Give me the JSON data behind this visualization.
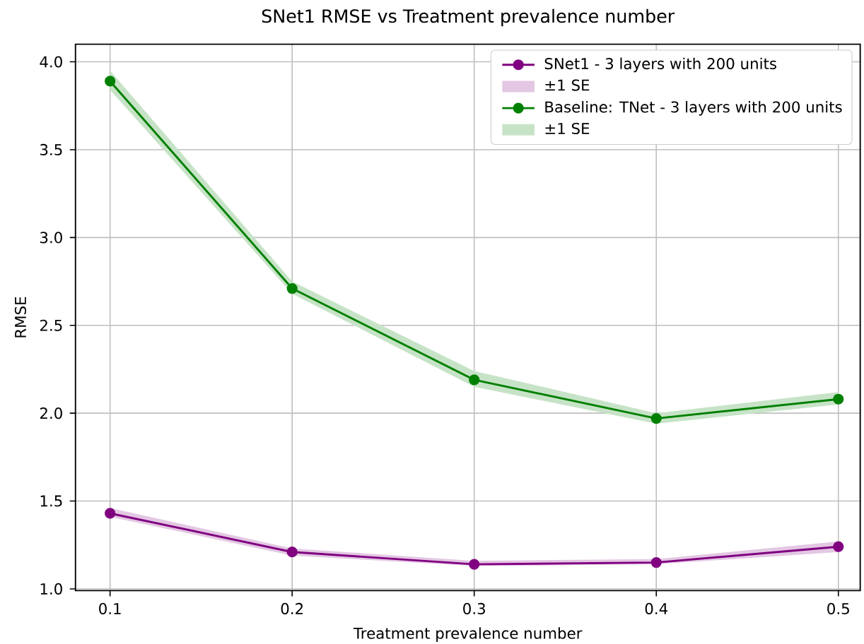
{
  "chart_data": {
    "type": "line",
    "title": "SNet1 RMSE vs Treatment prevalence number",
    "xlabel": "Treatment prevalence number",
    "ylabel": "RMSE",
    "x": [
      0.1,
      0.2,
      0.3,
      0.4,
      0.5
    ],
    "series": [
      {
        "name": "SNet1 - 3 layers with 200 units",
        "color": "#800080",
        "values": [
          1.43,
          1.21,
          1.14,
          1.15,
          1.24
        ],
        "lower": [
          1.41,
          1.19,
          1.13,
          1.14,
          1.21
        ],
        "upper": [
          1.46,
          1.23,
          1.16,
          1.17,
          1.27
        ]
      },
      {
        "name": "Baseline: TNet - 3 layers with 200 units",
        "color": "#008000",
        "values": [
          3.89,
          2.71,
          2.19,
          1.97,
          2.08
        ],
        "lower": [
          3.84,
          2.68,
          2.15,
          1.94,
          2.05
        ],
        "upper": [
          3.95,
          2.75,
          2.24,
          2.0,
          2.12
        ]
      }
    ],
    "annotations": [
      "±1 SE",
      "±1 SE"
    ],
    "xlim": [
      0.081,
      0.512
    ],
    "ylim": [
      0.99,
      4.1
    ],
    "xticks": [
      0.1,
      0.2,
      0.3,
      0.4,
      0.5
    ],
    "yticks": [
      {
        "value": 1,
        "label": "1.0"
      },
      {
        "value": 1.5,
        "label": "1.5"
      },
      {
        "value": 2,
        "label": "2.0"
      },
      {
        "value": 2.5,
        "label": "2.5"
      },
      {
        "value": 3,
        "label": "3.0"
      },
      {
        "value": 3.5,
        "label": "3.5"
      },
      {
        "value": 4,
        "label": "4.0"
      }
    ],
    "grid": true,
    "legend": "top right",
    "marker": "circle",
    "line_style": "solid"
  }
}
